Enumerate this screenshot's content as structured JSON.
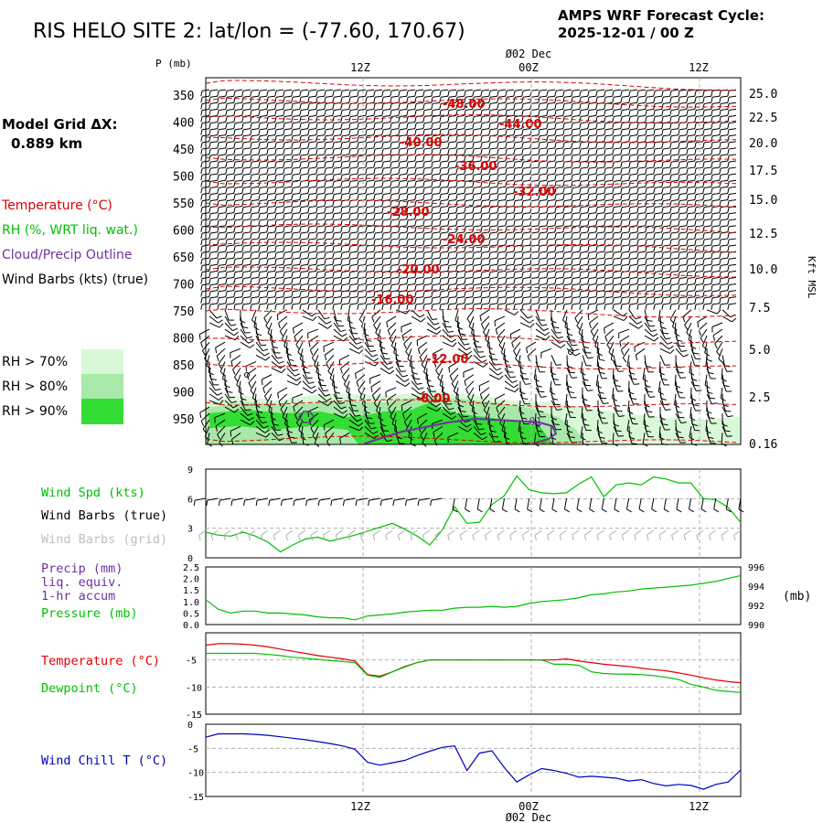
{
  "header": {
    "title": "RIS HELO SITE 2:  lat/lon = (-77.60, 170.67)",
    "cycle_line1": "AMPS WRF Forecast Cycle:",
    "cycle_line2": "2025-12-01 / 00  Z",
    "grid_line1": "Model Grid ΔX:",
    "grid_line2": "0.889 km"
  },
  "colors": {
    "temperature": "#e00000",
    "rh": "#00c000",
    "cloud": "#7030a0",
    "wind_grid": "#b0b0b0",
    "wind_chill": "#0000c0",
    "rh70": "#d8f8d8",
    "rh80": "#a8e8a8",
    "rh90": "#33dd33"
  },
  "legend": {
    "temperature": "Temperature (°C)",
    "rh": "RH (%, WRT liq. wat.)",
    "cloud": "Cloud/Precip Outline",
    "wind": "Wind Barbs (kts) (true)",
    "rh70": "RH > 70%",
    "rh80": "RH > 80%",
    "rh90": "RH > 90%"
  },
  "chart_data": [
    {
      "type": "contour",
      "ylabel": "P (mb)",
      "y2label": "Kft MSL",
      "time_ticks": [
        "12Z",
        "00Z",
        "12Z"
      ],
      "date_label": "02 Dec",
      "pressure_ticks": [
        350,
        400,
        450,
        500,
        550,
        600,
        650,
        700,
        750,
        800,
        850,
        900,
        950
      ],
      "height_ticks": [
        "25.0",
        "22.5",
        "20.0",
        "17.5",
        "15.0",
        "12.5",
        "10.0",
        "7.5",
        "5.0",
        "2.5",
        "0.16"
      ],
      "temperature_contour_labels": [
        "-48.00",
        "-44.00",
        "-40.00",
        "-36.00",
        "-32.00",
        "-28.00",
        "-24.00",
        "-20.00",
        "-16.00",
        "-12.00",
        "-8.00"
      ],
      "cloud_label": "-01"
    },
    {
      "type": "line",
      "series": [
        {
          "name": "Wind Spd (kts)",
          "values": [
            2.6,
            2.3,
            2.2,
            2.6,
            2.2,
            1.6,
            0.6,
            1.3,
            1.9,
            2.1,
            1.7,
            2.0,
            2.3,
            2.7,
            3.1,
            3.5,
            2.9,
            2.2,
            1.3,
            2.8,
            5.2,
            3.5,
            3.6,
            5.4,
            6.3,
            8.3,
            6.9,
            6.6,
            6.5,
            6.6,
            7.5,
            8.2,
            6.2,
            7.4,
            7.6,
            7.4,
            8.2,
            8.0,
            7.6,
            7.6,
            6.0,
            5.9,
            5.1,
            3.6
          ]
        }
      ],
      "legend": [
        "Wind Spd (kts)",
        "Wind Barbs (true)",
        "Wind Barbs (grid)"
      ],
      "y_ticks": [
        "9",
        "6",
        "3",
        "0"
      ],
      "ylim": [
        0,
        9
      ]
    },
    {
      "type": "line",
      "series": [
        {
          "name": "Pressure (mb)",
          "values": [
            992.6,
            991.6,
            991.2,
            991.4,
            991.4,
            991.2,
            991.2,
            991.1,
            991.0,
            990.8,
            990.7,
            990.7,
            990.5,
            990.9,
            991.0,
            991.1,
            991.3,
            991.4,
            991.5,
            991.5,
            991.7,
            991.8,
            991.8,
            991.9,
            991.8,
            991.9,
            992.2,
            992.4,
            992.5,
            992.6,
            992.8,
            993.1,
            993.2,
            993.4,
            993.5,
            993.7,
            993.8,
            993.9,
            994.0,
            994.1,
            994.3,
            994.5,
            994.8,
            995.1
          ]
        }
      ],
      "legend": [
        "Precip (mm)",
        "liq. equiv.",
        "1-hr accum",
        "Pressure (mb)"
      ],
      "y_ticks_left": [
        "2.5",
        "2.0",
        "1.5",
        "1.0",
        "0.5",
        "0.0"
      ],
      "y_ticks_right": [
        "996",
        "994",
        "992",
        "990"
      ],
      "y2label": "(mb)",
      "ylim": [
        0,
        2.5
      ],
      "y2lim": [
        990,
        996
      ]
    },
    {
      "type": "line",
      "series": [
        {
          "name": "Temperature (°C)",
          "values": [
            -2.3,
            -2.0,
            -2.0,
            -2.1,
            -2.3,
            -2.6,
            -3.0,
            -3.4,
            -3.8,
            -4.2,
            -4.5,
            -4.8,
            -5.2,
            -7.7,
            -8.0,
            -7.2,
            -6.2,
            -5.5,
            -5.0,
            -5.0,
            -5.0,
            -5.0,
            -5.0,
            -5.0,
            -5.0,
            -5.0,
            -5.0,
            -5.0,
            -5.0,
            -4.8,
            -5.2,
            -5.5,
            -5.8,
            -6.0,
            -6.2,
            -6.5,
            -6.8,
            -7.0,
            -7.4,
            -7.8,
            -8.3,
            -8.7,
            -9.0,
            -9.2
          ]
        },
        {
          "name": "Dewpoint (°C)",
          "values": [
            -3.8,
            -3.8,
            -3.8,
            -3.8,
            -3.8,
            -4.0,
            -4.2,
            -4.5,
            -4.7,
            -4.9,
            -5.1,
            -5.3,
            -5.5,
            -7.8,
            -8.2,
            -7.2,
            -6.3,
            -5.5,
            -5.0,
            -5.0,
            -5.0,
            -5.0,
            -5.0,
            -5.0,
            -5.0,
            -5.0,
            -5.0,
            -5.0,
            -5.8,
            -5.8,
            -6.0,
            -7.2,
            -7.5,
            -7.6,
            -7.6,
            -7.7,
            -7.9,
            -8.2,
            -8.6,
            -9.5,
            -10.0,
            -10.6,
            -10.8,
            -11.0
          ]
        }
      ],
      "y_ticks": [
        "-5",
        "-10",
        "-15"
      ],
      "ylim": [
        -15,
        0
      ]
    },
    {
      "type": "line",
      "series": [
        {
          "name": "Wind Chill T (°C)",
          "values": [
            -2.7,
            -2.0,
            -2.0,
            -2.0,
            -2.1,
            -2.3,
            -2.6,
            -2.9,
            -3.2,
            -3.6,
            -4.0,
            -4.5,
            -5.2,
            -7.9,
            -8.5,
            -8.0,
            -7.5,
            -6.5,
            -5.6,
            -4.8,
            -4.5,
            -9.6,
            -6.0,
            -5.5,
            -9.0,
            -12.0,
            -10.5,
            -9.2,
            -9.6,
            -10.2,
            -11.0,
            -10.8,
            -11.0,
            -11.2,
            -11.8,
            -11.5,
            -12.3,
            -12.8,
            -12.5,
            -12.7,
            -13.5,
            -12.5,
            -12.0,
            -9.5
          ]
        }
      ],
      "y_ticks": [
        "0",
        "-5",
        "-10",
        "-15"
      ],
      "ylim": [
        -15,
        0
      ],
      "time_ticks": [
        "12Z",
        "00Z",
        "12Z"
      ],
      "date_label": "02 Dec"
    }
  ]
}
